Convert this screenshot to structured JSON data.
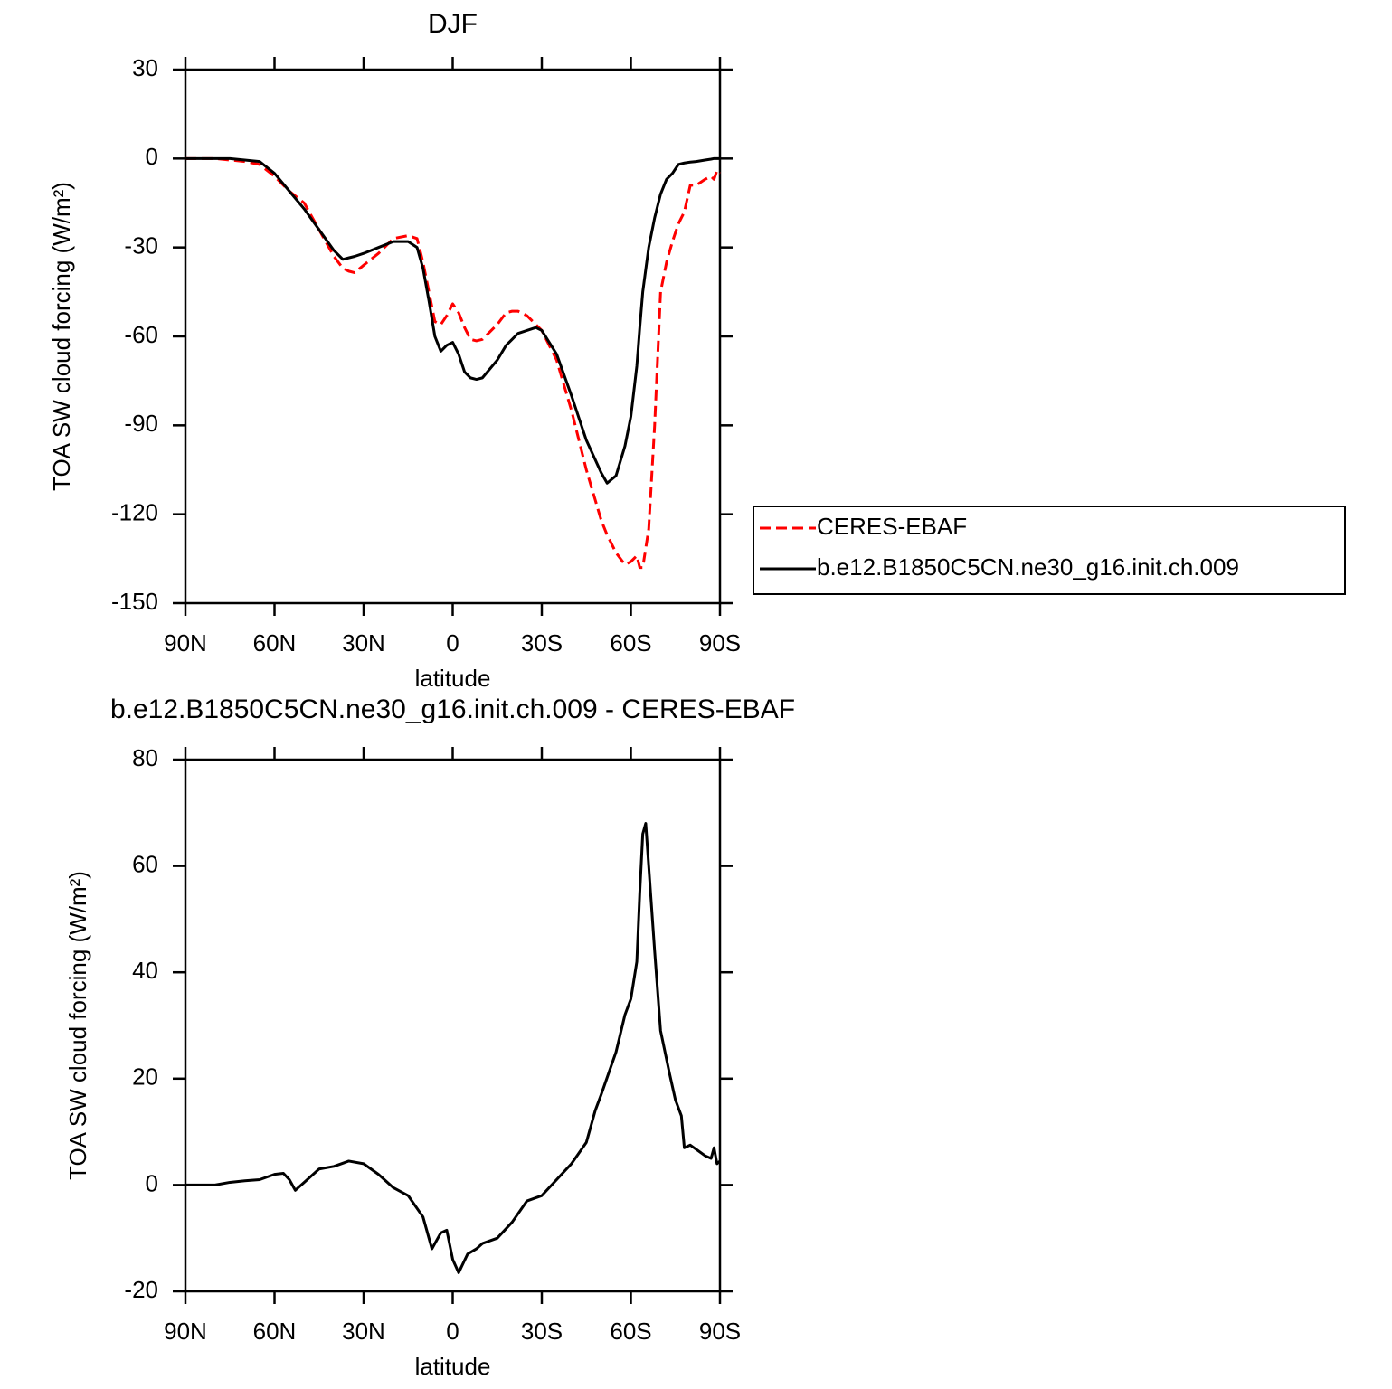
{
  "chart_data": [
    {
      "type": "line",
      "title": "DJF",
      "xlabel": "latitude",
      "ylabel": "TOA SW cloud forcing (W/m²)",
      "xlim": [
        90,
        -90
      ],
      "ylim": [
        30,
        -150
      ],
      "xticks": [
        {
          "value": 90,
          "label": "90N"
        },
        {
          "value": 60,
          "label": "60N"
        },
        {
          "value": 30,
          "label": "30N"
        },
        0,
        {
          "value": -30,
          "label": "30S"
        },
        {
          "value": -60,
          "label": "60S"
        },
        {
          "value": -90,
          "label": "90S"
        }
      ],
      "yticks": [
        30,
        0,
        -30,
        -60,
        -90,
        -120,
        -150
      ],
      "x": [
        90,
        80,
        75,
        70,
        65,
        60,
        55,
        50,
        45,
        40,
        37,
        35,
        33,
        30,
        25,
        20,
        15,
        12,
        10,
        8,
        6,
        4,
        2,
        0,
        -2,
        -4,
        -6,
        -8,
        -10,
        -15,
        -18,
        -20,
        -22,
        -25,
        -28,
        -30,
        -35,
        -40,
        -45,
        -50,
        -52,
        -55,
        -58,
        -60,
        -62,
        -63,
        -64,
        -66,
        -68,
        -70,
        -72,
        -74,
        -76,
        -78,
        -80,
        -82,
        -85,
        -87,
        -88,
        -89,
        -90
      ],
      "series": [
        {
          "name": "CERES-EBAF",
          "color": "#ff0000",
          "linestyle": "dashed",
          "values": [
            0,
            0,
            -0.5,
            -1,
            -2,
            -6,
            -11,
            -15,
            -24,
            -33,
            -37,
            -38,
            -38.5,
            -36,
            -32,
            -27,
            -26,
            -27,
            -35,
            -45,
            -55,
            -56,
            -53,
            -49,
            -52,
            -57,
            -61,
            -61.5,
            -61,
            -56,
            -52,
            -51.5,
            -51.5,
            -53,
            -56,
            -58,
            -68,
            -85,
            -105,
            -122,
            -127,
            -133,
            -137,
            -136,
            -134,
            -138,
            -138,
            -125,
            -90,
            -45,
            -35,
            -28,
            -22,
            -18,
            -9,
            -9,
            -7,
            -6,
            -7,
            -4,
            -5
          ]
        },
        {
          "name": "b.e12.B1850C5CN.ne30_g16.init.ch.009",
          "color": "#000000",
          "linestyle": "solid",
          "values": [
            0,
            0,
            0,
            -0.5,
            -1,
            -5,
            -11,
            -17,
            -24,
            -31,
            -34,
            -33.5,
            -33,
            -32,
            -30,
            -28,
            -28,
            -30,
            -37,
            -48,
            -60,
            -65,
            -63,
            -62,
            -66,
            -72,
            -74,
            -74.5,
            -74,
            -68,
            -63,
            -61,
            -59,
            -58,
            -57,
            -58,
            -66,
            -80,
            -95,
            -106,
            -109.5,
            -107,
            -97,
            -87,
            -70,
            -57,
            -45,
            -30,
            -20,
            -12,
            -7,
            -5,
            -2,
            -1.5,
            -1.2,
            -1,
            -0.5,
            -0.2,
            0,
            0,
            0
          ]
        }
      ]
    },
    {
      "type": "line",
      "title": "b.e12.B1850C5CN.ne30_g16.init.ch.009 - CERES-EBAF",
      "xlabel": "latitude",
      "ylabel": "TOA SW cloud forcing (W/m²)",
      "xlim": [
        90,
        -90
      ],
      "ylim": [
        80,
        -20
      ],
      "xticks": [
        {
          "value": 90,
          "label": "90N"
        },
        {
          "value": 60,
          "label": "60N"
        },
        {
          "value": 30,
          "label": "30N"
        },
        0,
        {
          "value": -30,
          "label": "30S"
        },
        {
          "value": -60,
          "label": "60S"
        },
        {
          "value": -90,
          "label": "90S"
        }
      ],
      "yticks": [
        80,
        60,
        40,
        20,
        0,
        -20
      ],
      "x": [
        90,
        80,
        75,
        70,
        65,
        60,
        57,
        55,
        53,
        50,
        45,
        40,
        35,
        30,
        25,
        20,
        15,
        10,
        7,
        4,
        2,
        0,
        -2,
        -5,
        -8,
        -10,
        -15,
        -20,
        -25,
        -30,
        -35,
        -40,
        -45,
        -48,
        -50,
        -55,
        -58,
        -60,
        -62,
        -63,
        -64,
        -65,
        -66,
        -68,
        -70,
        -73,
        -75,
        -77,
        -78,
        -80,
        -85,
        -87,
        -88,
        -89,
        -90
      ],
      "color": "#000000",
      "values": [
        0,
        0,
        0.5,
        0.8,
        1,
        2,
        2.2,
        1,
        -1,
        0.5,
        3,
        3.5,
        4.5,
        4,
        2,
        -0.5,
        -2,
        -6,
        -12,
        -9,
        -8.5,
        -14,
        -16.5,
        -13,
        -12,
        -11,
        -10,
        -7,
        -3,
        -2,
        1,
        4,
        8,
        14,
        17,
        25,
        32,
        35,
        42,
        55,
        66,
        68,
        60,
        44,
        29,
        21,
        16,
        13,
        7,
        7.5,
        5.5,
        5,
        7,
        4,
        4.5
      ]
    }
  ]
}
